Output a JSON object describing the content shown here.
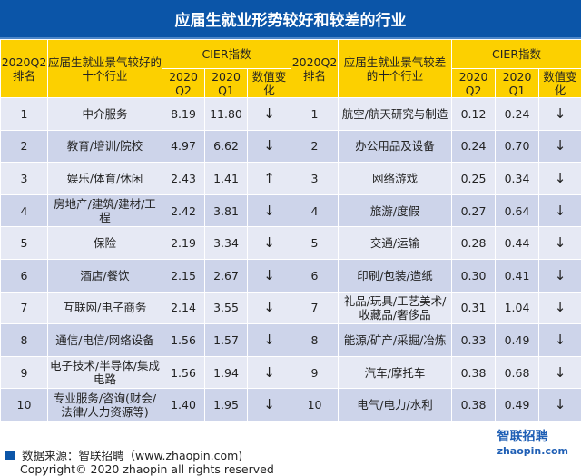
{
  "title": "应届生就业形势较好和较差的行业",
  "headers": {
    "rank": "2020Q2排名",
    "good": "应届生就业景气较好的十个行业",
    "bad": "应届生就业景气较差的十个行业",
    "cier": "CIER指数",
    "q2": "2020 Q2",
    "q1": "2020 Q1",
    "change": "数值变化"
  },
  "good": [
    {
      "rank": "1",
      "name": "中介服务",
      "q2": "8.19",
      "q1": "11.80",
      "chg": "↓"
    },
    {
      "rank": "2",
      "name": "教育/培训/院校",
      "q2": "4.97",
      "q1": "6.62",
      "chg": "↓"
    },
    {
      "rank": "3",
      "name": "娱乐/体育/休闲",
      "q2": "2.43",
      "q1": "1.41",
      "chg": "↑"
    },
    {
      "rank": "4",
      "name": "房地产/建筑/建材/工程",
      "q2": "2.42",
      "q1": "3.81",
      "chg": "↓"
    },
    {
      "rank": "5",
      "name": "保险",
      "q2": "2.19",
      "q1": "3.34",
      "chg": "↓"
    },
    {
      "rank": "6",
      "name": "酒店/餐饮",
      "q2": "2.15",
      "q1": "2.67",
      "chg": "↓"
    },
    {
      "rank": "7",
      "name": "互联网/电子商务",
      "q2": "2.14",
      "q1": "3.55",
      "chg": "↓"
    },
    {
      "rank": "8",
      "name": "通信/电信/网络设备",
      "q2": "1.56",
      "q1": "1.57",
      "chg": "↓"
    },
    {
      "rank": "9",
      "name": "电子技术/半导体/集成电路",
      "q2": "1.56",
      "q1": "1.94",
      "chg": "↓"
    },
    {
      "rank": "10",
      "name": "专业服务/咨询(财会/法律/人力资源等)",
      "q2": "1.40",
      "q1": "1.95",
      "chg": "↓"
    }
  ],
  "bad": [
    {
      "rank": "1",
      "name": "航空/航天研究与制造",
      "q2": "0.12",
      "q1": "0.24",
      "chg": "↓"
    },
    {
      "rank": "2",
      "name": "办公用品及设备",
      "q2": "0.24",
      "q1": "0.70",
      "chg": "↓"
    },
    {
      "rank": "3",
      "name": "网络游戏",
      "q2": "0.25",
      "q1": "0.34",
      "chg": "↓"
    },
    {
      "rank": "4",
      "name": "旅游/度假",
      "q2": "0.27",
      "q1": "0.64",
      "chg": "↓"
    },
    {
      "rank": "5",
      "name": "交通/运输",
      "q2": "0.28",
      "q1": "0.44",
      "chg": "↓"
    },
    {
      "rank": "6",
      "name": "印刷/包装/造纸",
      "q2": "0.30",
      "q1": "0.41",
      "chg": "↓"
    },
    {
      "rank": "7",
      "name": "礼品/玩具/工艺美术/收藏品/奢侈品",
      "q2": "0.31",
      "q1": "1.04",
      "chg": "↓"
    },
    {
      "rank": "8",
      "name": "能源/矿产/采掘/冶炼",
      "q2": "0.33",
      "q1": "0.49",
      "chg": "↓"
    },
    {
      "rank": "9",
      "name": "汽车/摩托车",
      "q2": "0.38",
      "q1": "0.68",
      "chg": "↓"
    },
    {
      "rank": "10",
      "name": "电气/电力/水利",
      "q2": "0.38",
      "q1": "0.49",
      "chg": "↓"
    }
  ],
  "source": "数据来源：智联招聘（www.zhaopin.com)",
  "copyright": "Copyright© 2020 zhaopin all rights reserved",
  "watermark": "智联招聘 zhaopin.com",
  "colors": {
    "title_bg": "#0b55a8",
    "header_bg": "#fcd000",
    "row_light": "#e6e9f4",
    "row_dark": "#cdd4ea"
  }
}
